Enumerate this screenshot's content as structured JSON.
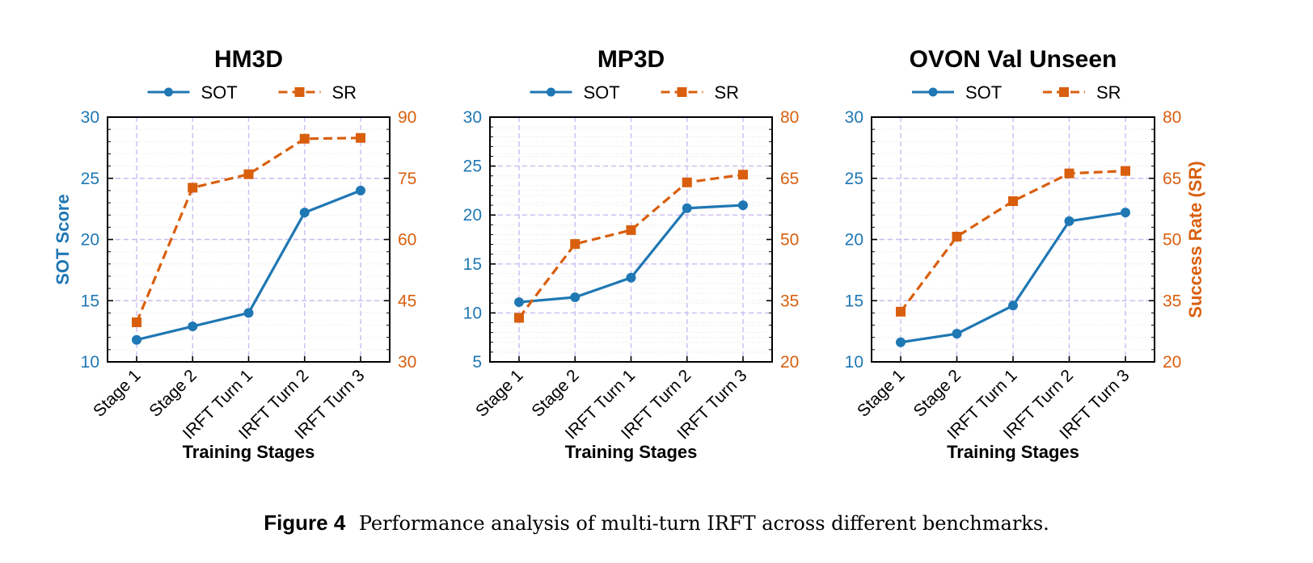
{
  "chart_data": [
    {
      "type": "line",
      "title": "HM3D",
      "categories": [
        "Stage 1",
        "Stage 2",
        "IRFT Turn 1",
        "IRFT Turn 2",
        "IRFT Turn 3"
      ],
      "xlabel": "Training Stages",
      "ylabel": "SOT Score",
      "ylabel_right": "",
      "ylim": [
        10,
        30
      ],
      "yticks": [
        10,
        15,
        20,
        25,
        30
      ],
      "ylim_right": [
        30,
        90
      ],
      "yticks_right": [
        30,
        45,
        60,
        75,
        90
      ],
      "grid": true,
      "legend": "top-center",
      "series": [
        {
          "name": "SOT",
          "axis": "left",
          "style": "solid",
          "marker": "circle",
          "color": "#1f77b4",
          "values": [
            11.8,
            12.9,
            14.0,
            22.2,
            24.0
          ]
        },
        {
          "name": "SR",
          "axis": "right",
          "style": "dashed",
          "marker": "square",
          "color": "#d95f0e",
          "values": [
            39.7,
            72.7,
            76.0,
            84.7,
            84.9
          ]
        }
      ]
    },
    {
      "type": "line",
      "title": "MP3D",
      "categories": [
        "Stage 1",
        "Stage 2",
        "IRFT Turn 1",
        "IRFT Turn 2",
        "IRFT Turn 3"
      ],
      "xlabel": "Training Stages",
      "ylabel": "",
      "ylabel_right": "",
      "ylim": [
        5,
        30
      ],
      "yticks": [
        5,
        10,
        15,
        20,
        25,
        30
      ],
      "ylim_right": [
        20,
        80
      ],
      "yticks_right": [
        20,
        35,
        50,
        65,
        80
      ],
      "grid": true,
      "legend": "top-center",
      "series": [
        {
          "name": "SOT",
          "axis": "left",
          "style": "solid",
          "marker": "circle",
          "color": "#1f77b4",
          "values": [
            11.1,
            11.6,
            13.6,
            20.7,
            21.0
          ]
        },
        {
          "name": "SR",
          "axis": "right",
          "style": "dashed",
          "marker": "square",
          "color": "#d95f0e",
          "values": [
            30.8,
            48.9,
            52.3,
            64.0,
            65.9
          ]
        }
      ]
    },
    {
      "type": "line",
      "title": "OVON Val Unseen",
      "categories": [
        "Stage 1",
        "Stage 2",
        "IRFT Turn 1",
        "IRFT Turn 2",
        "IRFT Turn 3"
      ],
      "xlabel": "Training Stages",
      "ylabel": "",
      "ylabel_right": "Success Rate (SR)",
      "ylim": [
        10,
        30
      ],
      "yticks": [
        10,
        15,
        20,
        25,
        30
      ],
      "ylim_right": [
        20,
        80
      ],
      "yticks_right": [
        20,
        35,
        50,
        65,
        80
      ],
      "grid": true,
      "legend": "top-center",
      "series": [
        {
          "name": "SOT",
          "axis": "left",
          "style": "solid",
          "marker": "circle",
          "color": "#1f77b4",
          "values": [
            11.6,
            12.3,
            14.6,
            21.5,
            22.2
          ]
        },
        {
          "name": "SR",
          "axis": "right",
          "style": "dashed",
          "marker": "square",
          "color": "#d95f0e",
          "values": [
            32.3,
            50.7,
            59.4,
            66.2,
            66.8
          ]
        }
      ]
    }
  ],
  "caption": {
    "label": "Figure 4",
    "text": "Performance analysis of multi-turn IRFT across different benchmarks."
  }
}
